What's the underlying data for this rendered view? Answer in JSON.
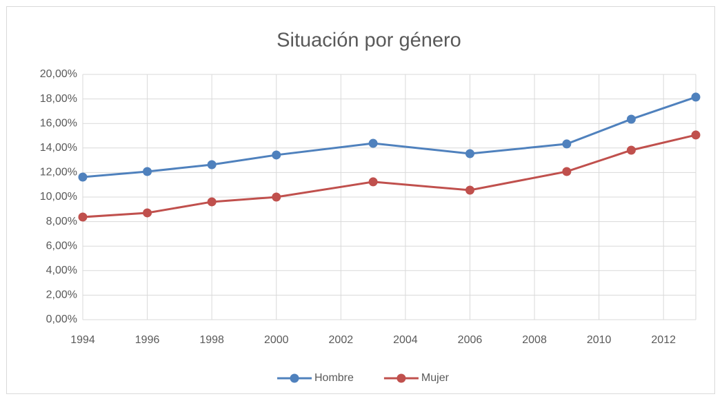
{
  "chart_data": {
    "type": "line",
    "title": "Situación por género",
    "x": [
      1994,
      1996,
      1998,
      2000,
      2003,
      2006,
      2009,
      2011,
      2013
    ],
    "series": [
      {
        "name": "Hombre",
        "color": "#4f81bd",
        "values": [
          11.63,
          12.08,
          12.64,
          13.43,
          14.38,
          13.54,
          14.33,
          16.35,
          18.15
        ]
      },
      {
        "name": "Mujer",
        "color": "#c0504d",
        "values": [
          8.37,
          8.71,
          9.61,
          10.0,
          11.24,
          10.56,
          12.08,
          13.82,
          15.06
        ]
      }
    ],
    "xlim": [
      1994,
      2013
    ],
    "xticks": [
      1994,
      1996,
      1998,
      2000,
      2002,
      2004,
      2006,
      2008,
      2010,
      2012
    ],
    "ylim": [
      0,
      20
    ],
    "yticks": [
      {
        "value": 0,
        "label": "0,00%"
      },
      {
        "value": 2,
        "label": "2,00%"
      },
      {
        "value": 4,
        "label": "4,00%"
      },
      {
        "value": 6,
        "label": "6,00%"
      },
      {
        "value": 8,
        "label": "8,00%"
      },
      {
        "value": 10,
        "label": "10,00%"
      },
      {
        "value": 12,
        "label": "12,00%"
      },
      {
        "value": 14,
        "label": "14,00%"
      },
      {
        "value": 16,
        "label": "16,00%"
      },
      {
        "value": 18,
        "label": "18,00%"
      },
      {
        "value": 20,
        "label": "20,00%"
      }
    ],
    "grid": true,
    "legend": "bottom"
  }
}
